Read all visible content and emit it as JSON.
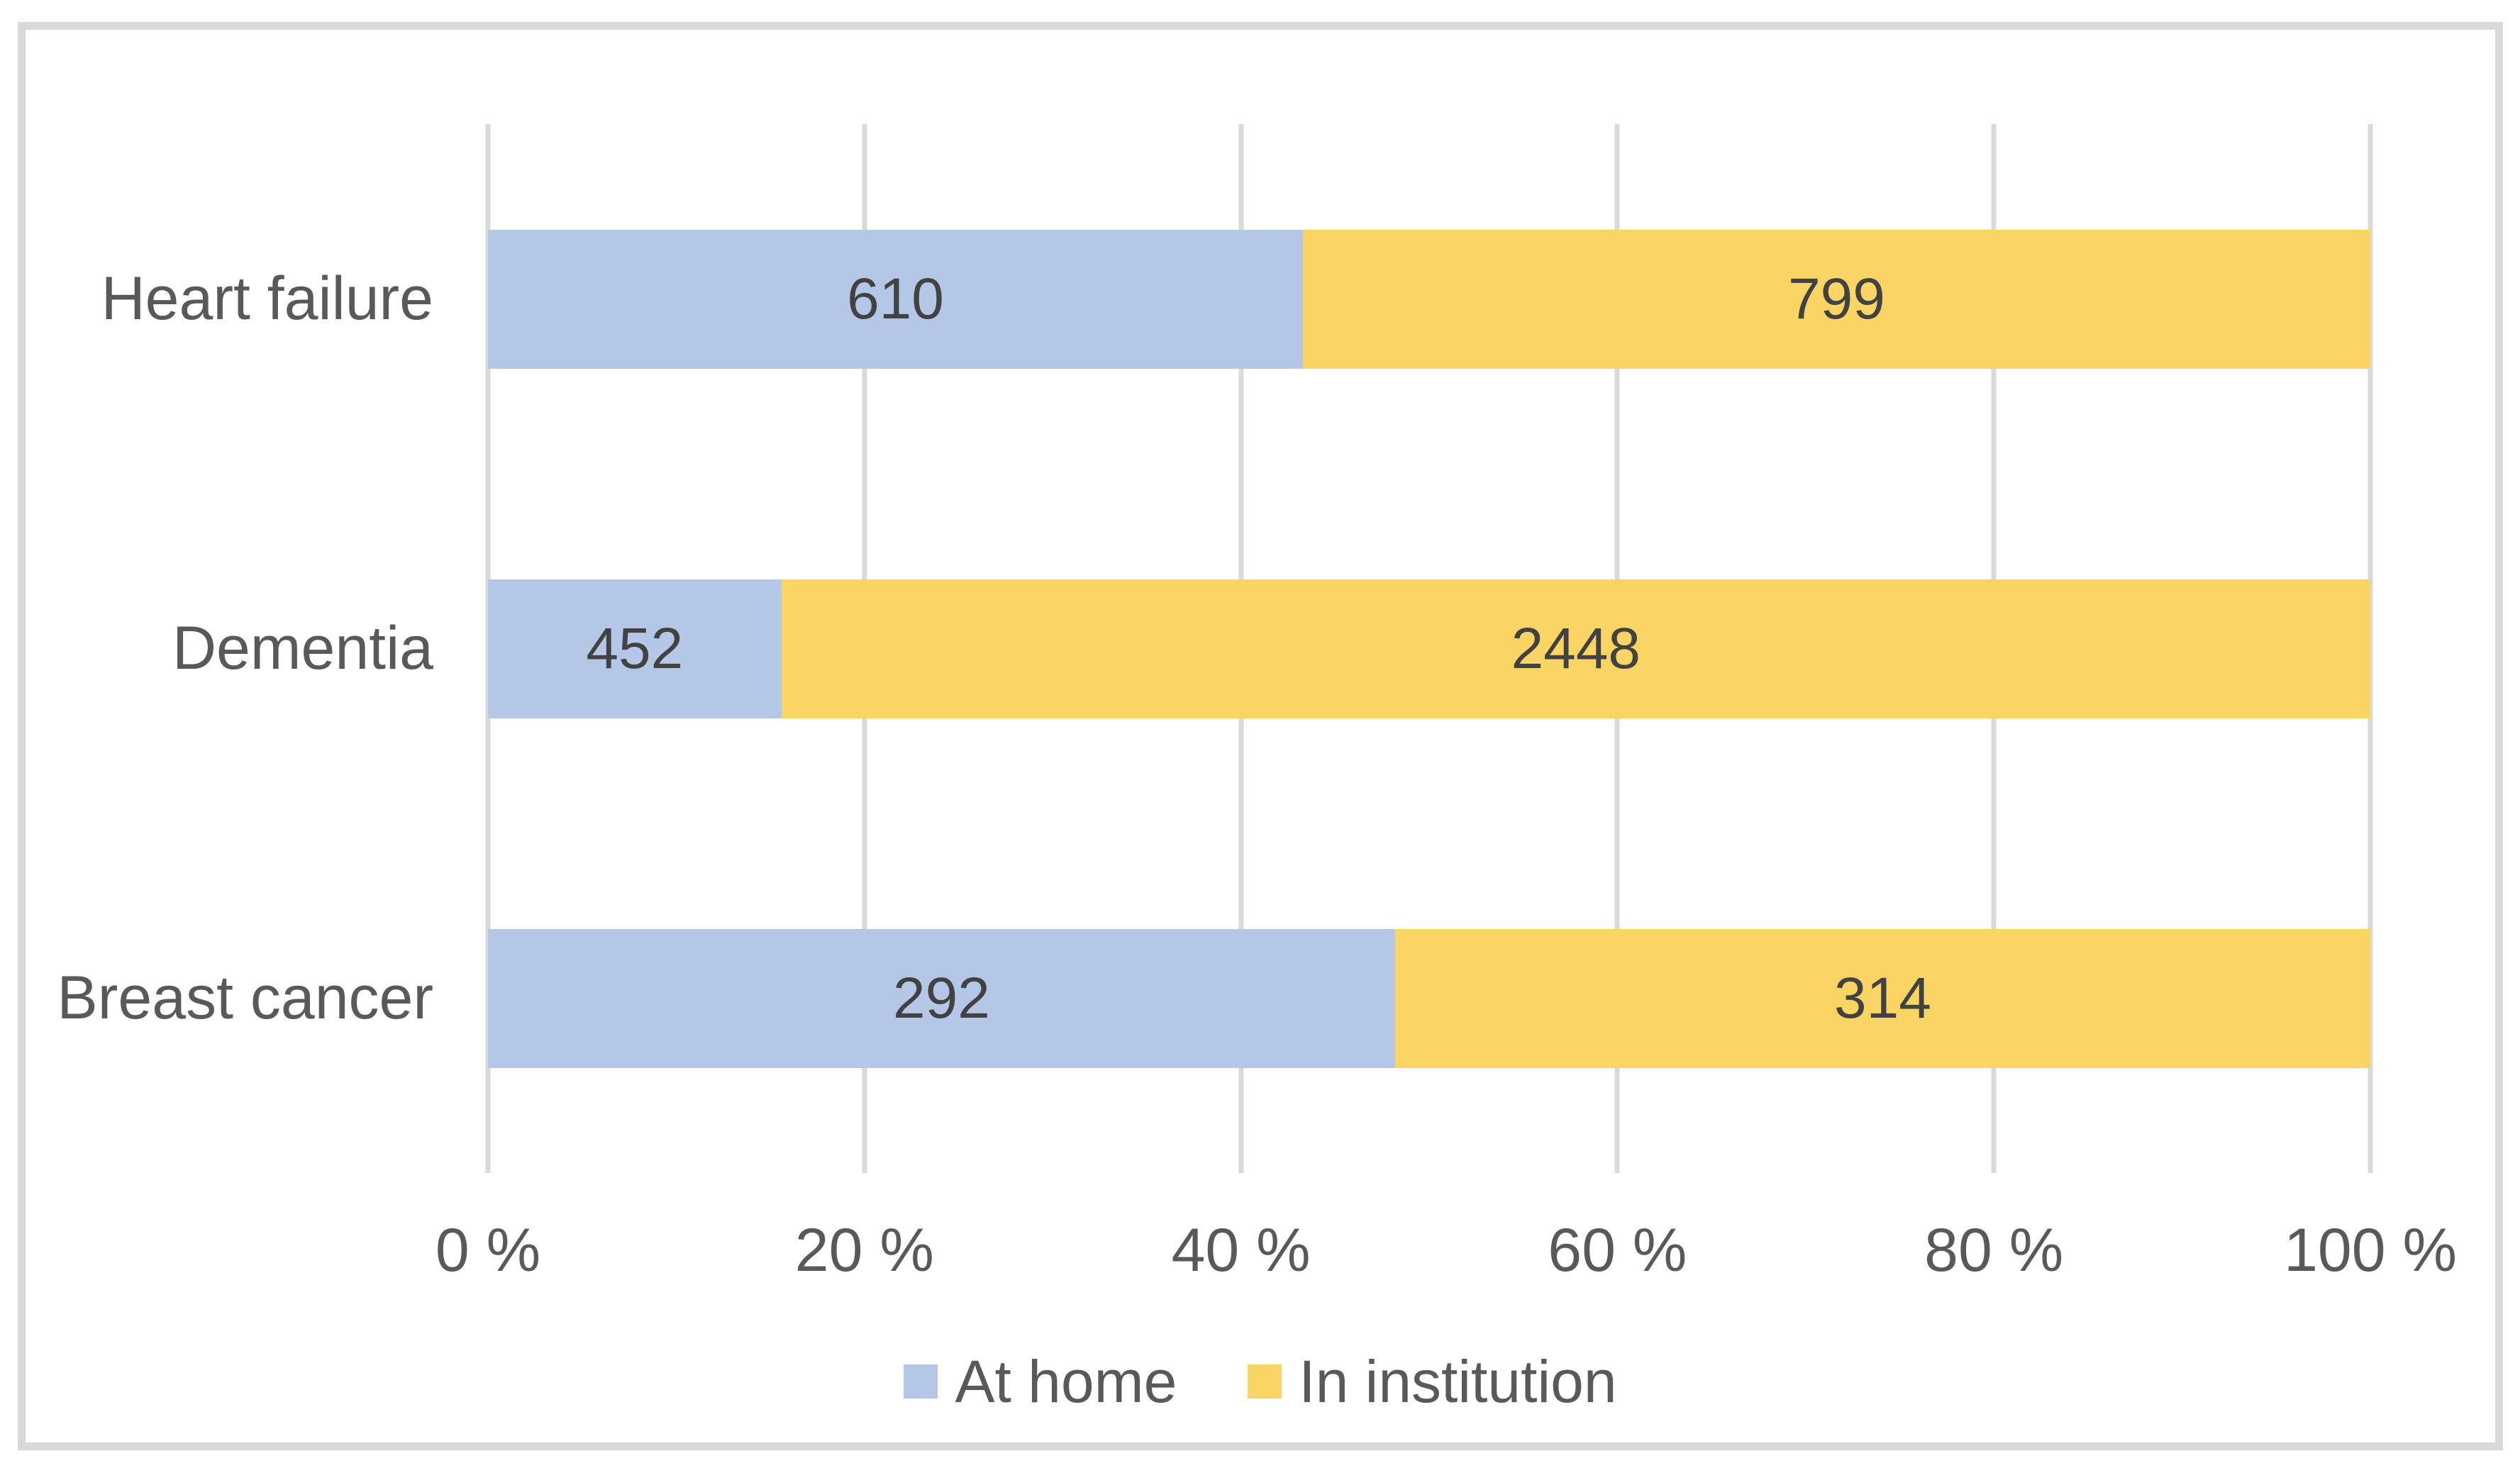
{
  "chart_data": {
    "type": "bar",
    "orientation": "horizontal",
    "stacked": true,
    "percent_axis": true,
    "title": "",
    "xlabel": "",
    "ylabel": "",
    "categories": [
      "Heart failure",
      "Dementia",
      "Breast cancer"
    ],
    "series": [
      {
        "name": "At home",
        "color": "#b4c7e7",
        "values": [
          610,
          452,
          292
        ]
      },
      {
        "name": "In institution",
        "color": "#fbd564",
        "values": [
          799,
          2448,
          314
        ]
      }
    ],
    "x_ticks": [
      "0 %",
      "20 %",
      "40 %",
      "60 %",
      "80 %",
      "100 %"
    ],
    "xlim": [
      0,
      100
    ],
    "grid": "vertical-only",
    "legend_position": "bottom"
  },
  "colors": {
    "at_home": "#b4c7e7",
    "in_institution": "#fbd564",
    "gridline": "#d9d9d9",
    "frame_border": "#d9d9da",
    "axis_text": "#595959",
    "value_text": "#424242"
  }
}
